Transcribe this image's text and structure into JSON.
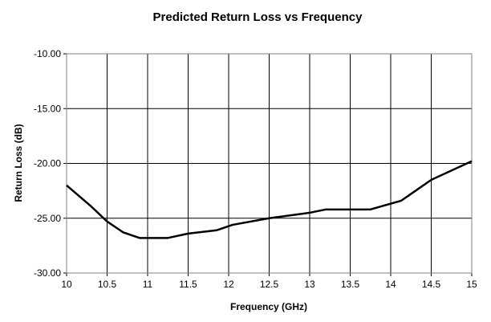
{
  "chart_data": {
    "type": "line",
    "title": "Predicted Return Loss vs Frequency",
    "xlabel": "Frequency (GHz)",
    "ylabel": "Return Loss (dB)",
    "xlim": [
      10,
      15
    ],
    "ylim": [
      -30,
      -10
    ],
    "grid": true,
    "legend": "none",
    "x_ticks": [
      10,
      10.5,
      11,
      11.5,
      12,
      12.5,
      13,
      13.5,
      14,
      14.5,
      15
    ],
    "x_tick_labels": [
      "10",
      "10.5",
      "11",
      "11.5",
      "12",
      "12.5",
      "13",
      "13.5",
      "14",
      "14.5",
      "15"
    ],
    "y_ticks": [
      -10,
      -15,
      -20,
      -25,
      -30
    ],
    "y_tick_labels": [
      "-10.00",
      "-15.00",
      "-20.00",
      "-25.00",
      "-30.00"
    ],
    "series": [
      {
        "name": "Return Loss",
        "color": "#000000",
        "x": [
          10,
          10.3,
          10.5,
          10.7,
          10.9,
          11.25,
          11.5,
          11.85,
          12.05,
          12.5,
          13.0,
          13.2,
          13.75,
          14.13,
          14.5,
          15
        ],
        "y": [
          -22.0,
          -23.9,
          -25.3,
          -26.3,
          -26.8,
          -26.8,
          -26.4,
          -26.1,
          -25.6,
          -25.0,
          -24.5,
          -24.2,
          -24.2,
          -23.4,
          -21.5,
          -19.8
        ]
      }
    ]
  }
}
